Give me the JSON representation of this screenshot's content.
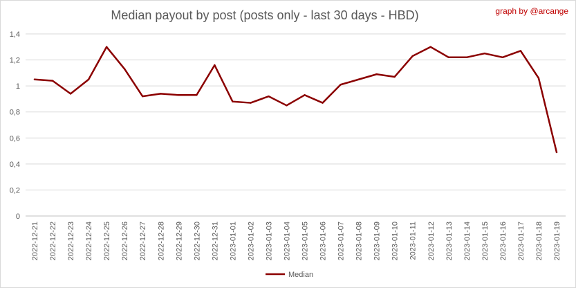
{
  "chart_data": {
    "type": "line",
    "title": "Median payout by post (posts only - last 30 days - HBD)",
    "credit": "graph by @arcange",
    "xlabel": "",
    "ylabel": "",
    "ylim": [
      0,
      1.4
    ],
    "yticks": [
      "0",
      "0,2",
      "0,4",
      "0,6",
      "0,8",
      "1",
      "1,2",
      "1,4"
    ],
    "grid": true,
    "legend_position": "bottom",
    "categories": [
      "2022-12-21",
      "2022-12-22",
      "2022-12-23",
      "2022-12-24",
      "2022-12-25",
      "2022-12-26",
      "2022-12-27",
      "2022-12-28",
      "2022-12-29",
      "2022-12-30",
      "2022-12-31",
      "2023-01-01",
      "2023-01-02",
      "2023-01-03",
      "2023-01-04",
      "2023-01-05",
      "2023-01-06",
      "2023-01-07",
      "2023-01-08",
      "2023-01-09",
      "2023-01-10",
      "2023-01-11",
      "2023-01-12",
      "2023-01-13",
      "2023-01-14",
      "2023-01-15",
      "2023-01-16",
      "2023-01-17",
      "2023-01-18",
      "2023-01-19"
    ],
    "series": [
      {
        "name": "Median",
        "color": "#8b0000",
        "values": [
          1.05,
          1.04,
          0.94,
          1.05,
          1.3,
          1.13,
          0.92,
          0.94,
          0.93,
          0.93,
          1.16,
          0.88,
          0.87,
          0.92,
          0.85,
          0.93,
          0.87,
          1.01,
          1.05,
          1.09,
          1.07,
          1.23,
          1.3,
          1.22,
          1.22,
          1.25,
          1.22,
          1.27,
          1.06,
          0.49
        ]
      }
    ]
  }
}
